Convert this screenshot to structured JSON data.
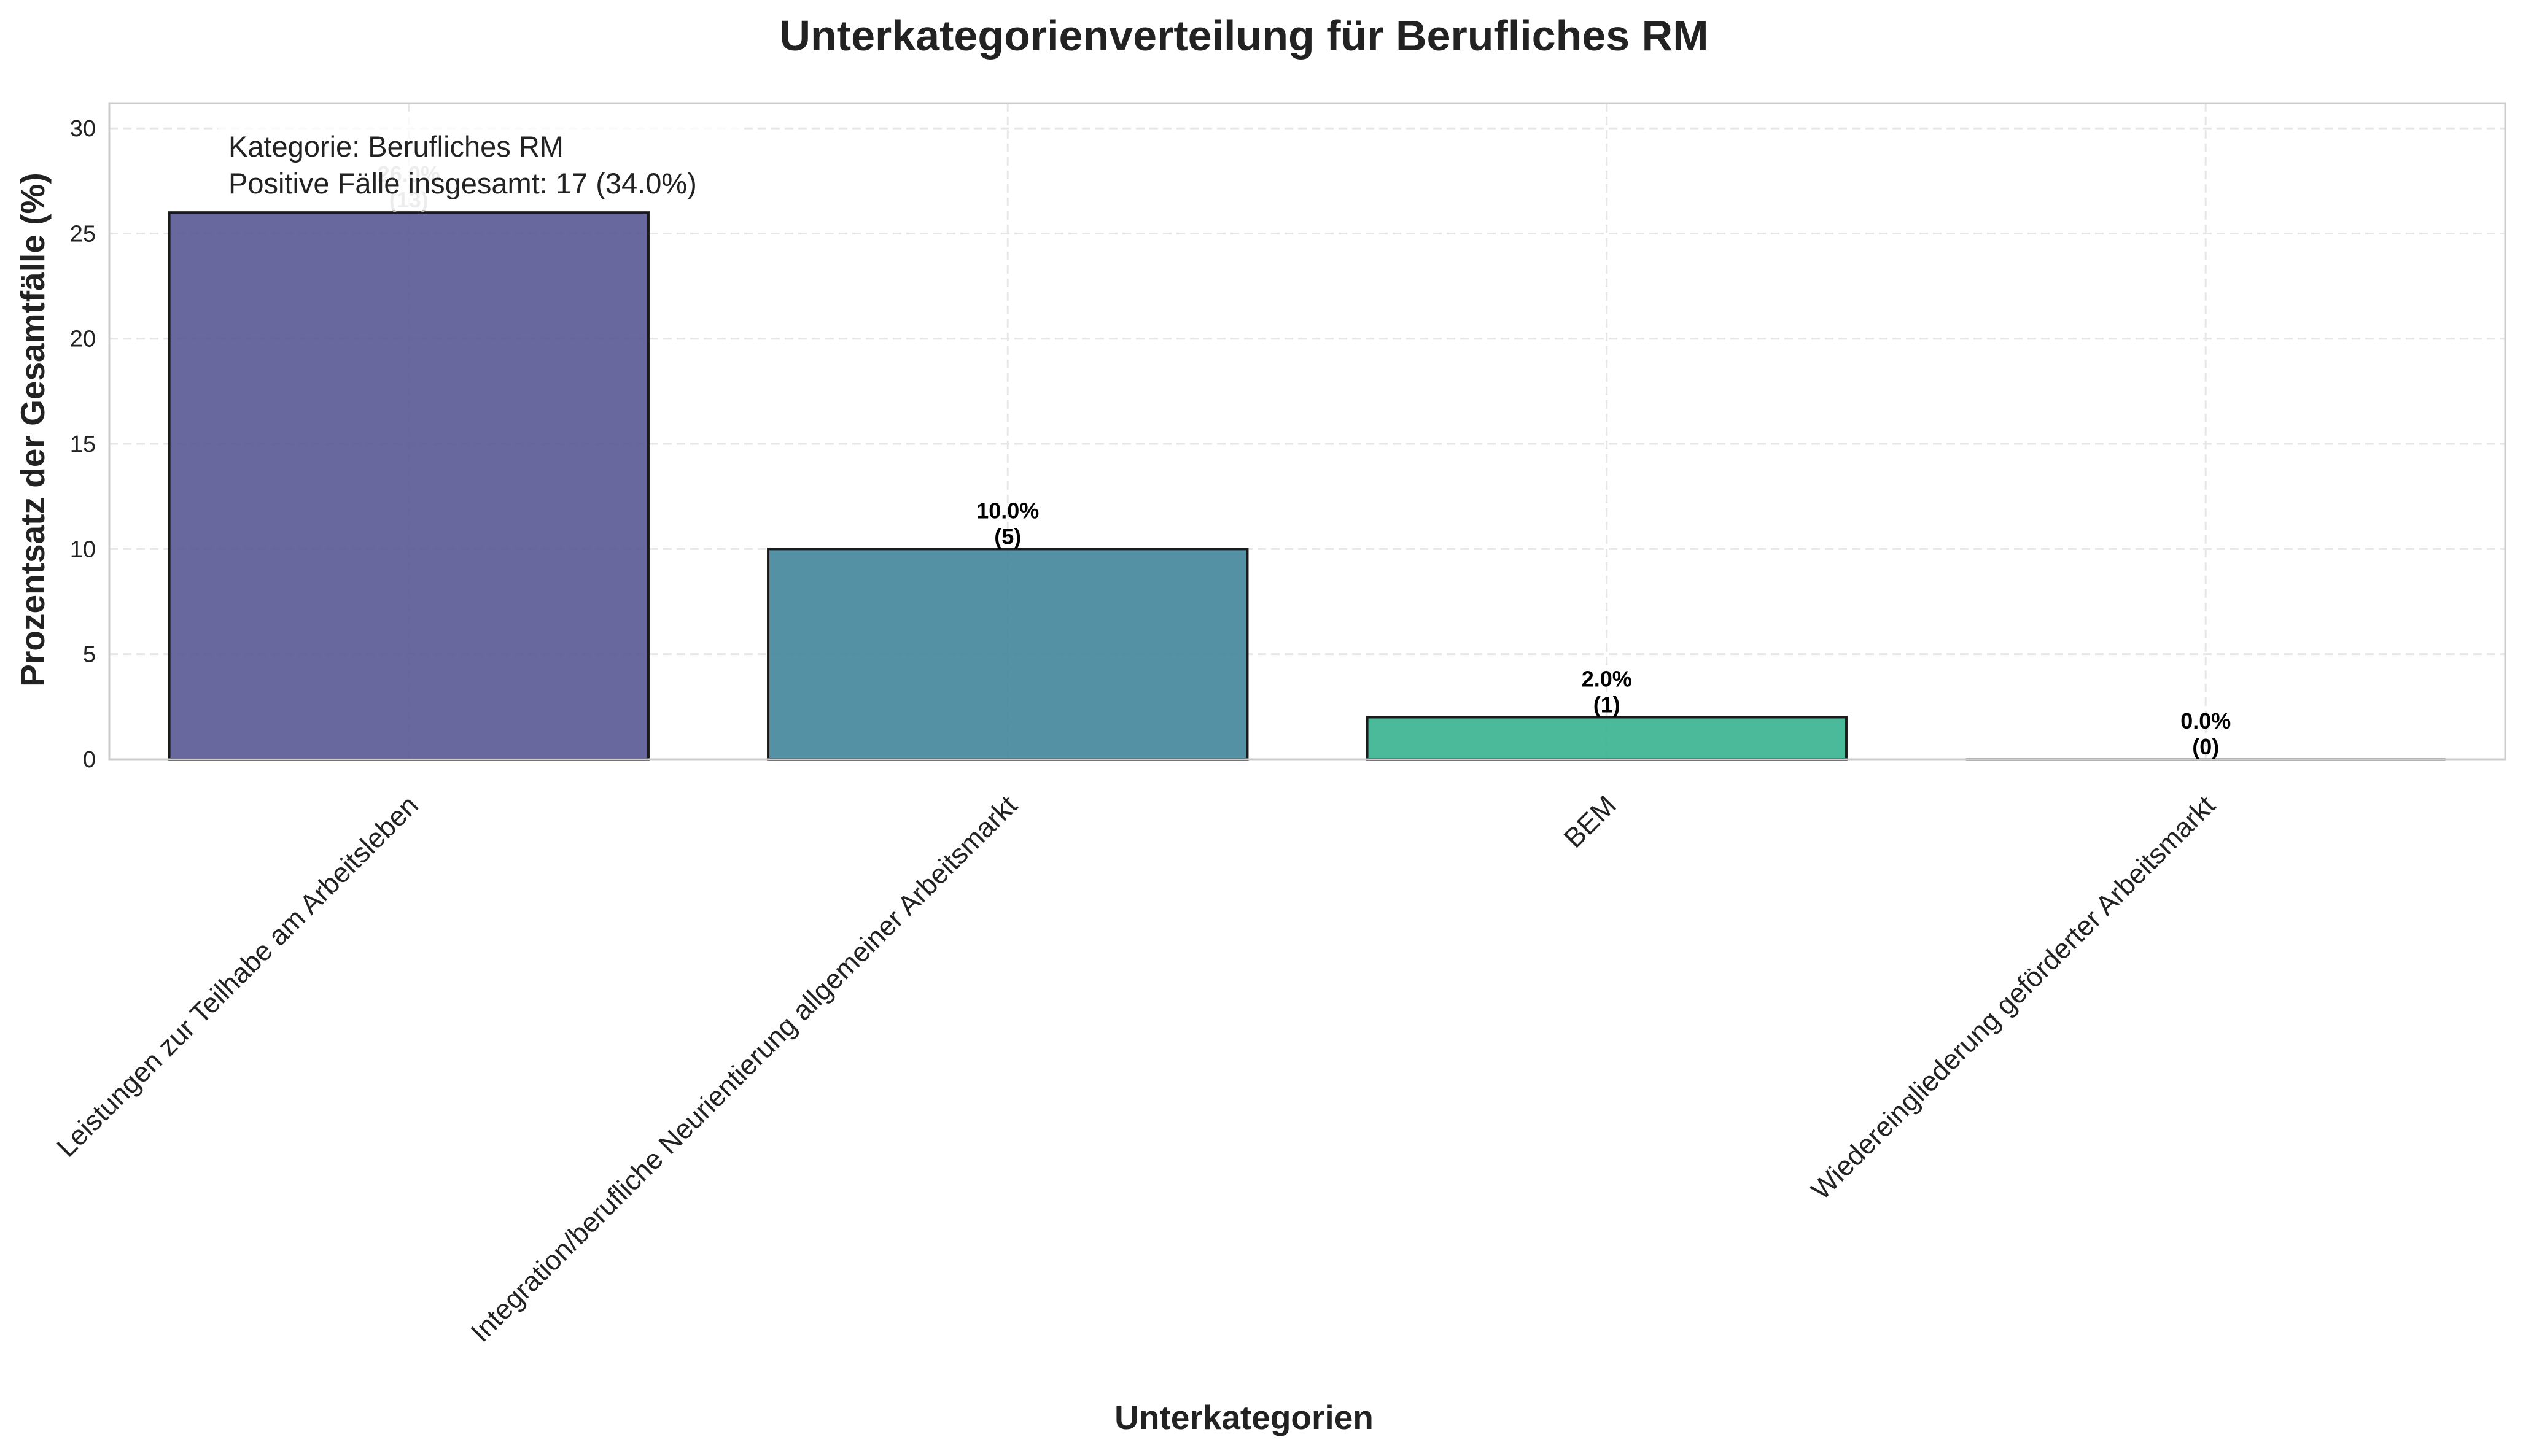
{
  "chart_data": {
    "type": "bar",
    "title": "Unterkategorienverteilung für Berufliches RM",
    "xlabel": "Unterkategorien",
    "ylabel": "Prozentsatz der Gesamtfälle (%)",
    "ylim": [
      0,
      31.2
    ],
    "yticks": [
      "0",
      "5",
      "10",
      "15",
      "20",
      "25",
      "30"
    ],
    "grid": true,
    "categories": [
      "Leistungen zur Teilhabe am Arbeitsleben",
      "Integration/berufliche Neurientierung allgemeiner Arbeitsmarkt",
      "BEM",
      "Wiedereingliederung geförderter Arbeitsmarkt"
    ],
    "values": [
      26.0,
      10.0,
      2.0,
      0.0
    ],
    "counts": [
      13,
      5,
      1,
      0
    ],
    "bar_labels": [
      {
        "pct": "26.0%",
        "count": "(13)"
      },
      {
        "pct": "10.0%",
        "count": "(5)"
      },
      {
        "pct": "2.0%",
        "count": "(1)"
      },
      {
        "pct": "0.0%",
        "count": "(0)"
      }
    ],
    "colors": [
      "#5b5b96",
      "#47889d",
      "#3bb493",
      "#8fcc85"
    ],
    "info_box": {
      "line1": "Kategorie: Berufliches RM",
      "line2": "Positive Fälle insgesamt: 17 (34.0%)"
    }
  }
}
